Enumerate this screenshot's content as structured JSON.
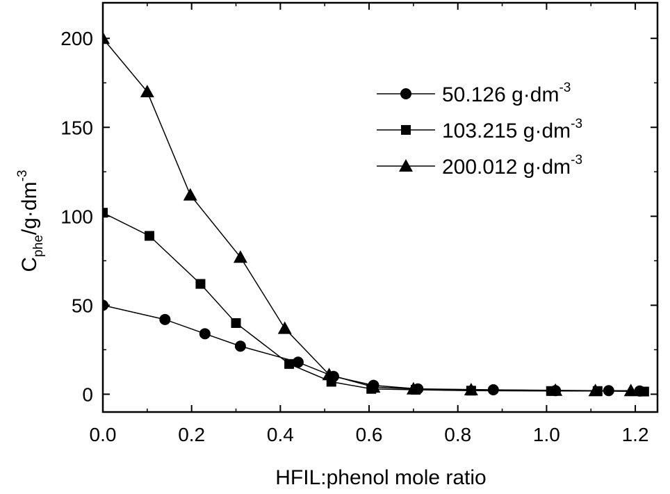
{
  "chart_data": {
    "type": "line",
    "xlabel": "HFIL:phenol mole ratio",
    "ylabel": {
      "main": "C",
      "sub": "phe",
      "unit": "/g·dm",
      "sup": "-3"
    },
    "xlim": [
      0.0,
      1.25
    ],
    "ylim": [
      -10,
      220
    ],
    "xticks": [
      0.0,
      0.2,
      0.4,
      0.6,
      0.8,
      1.0,
      1.2
    ],
    "xtick_labels": [
      "0.0",
      "0.2",
      "0.4",
      "0.6",
      "0.8",
      "1.0",
      "1.2"
    ],
    "yticks": [
      0,
      50,
      100,
      150,
      200
    ],
    "ytick_labels": [
      "0",
      "50",
      "100",
      "150",
      "200"
    ],
    "grid": false,
    "legend_position": "top-right",
    "series": [
      {
        "name": "50.126 g·dm",
        "name_sup": "-3",
        "marker": "circle",
        "x": [
          0.0,
          0.14,
          0.23,
          0.31,
          0.44,
          0.52,
          0.61,
          0.71,
          0.88,
          1.02,
          1.14,
          1.21
        ],
        "y": [
          50,
          42,
          34,
          27,
          18,
          10,
          5,
          3,
          2.5,
          2,
          2,
          1.8
        ]
      },
      {
        "name": "103.215 g·dm",
        "name_sup": "-3",
        "marker": "square",
        "x": [
          0.0,
          0.105,
          0.22,
          0.3,
          0.42,
          0.515,
          0.605,
          0.705,
          0.83,
          1.01,
          1.115,
          1.22
        ],
        "y": [
          102,
          89,
          62,
          40,
          17,
          7,
          3,
          2.5,
          2,
          1.8,
          1.8,
          1.5
        ]
      },
      {
        "name": "200.012 g·dm",
        "name_sup": "-3",
        "marker": "triangle",
        "x": [
          0.0,
          0.1,
          0.197,
          0.31,
          0.41,
          0.51,
          0.61,
          0.7,
          0.83,
          1.02,
          1.11,
          1.19
        ],
        "y": [
          200,
          170,
          112,
          77,
          37,
          11,
          4,
          3,
          2.5,
          2.2,
          2,
          2
        ]
      }
    ]
  }
}
